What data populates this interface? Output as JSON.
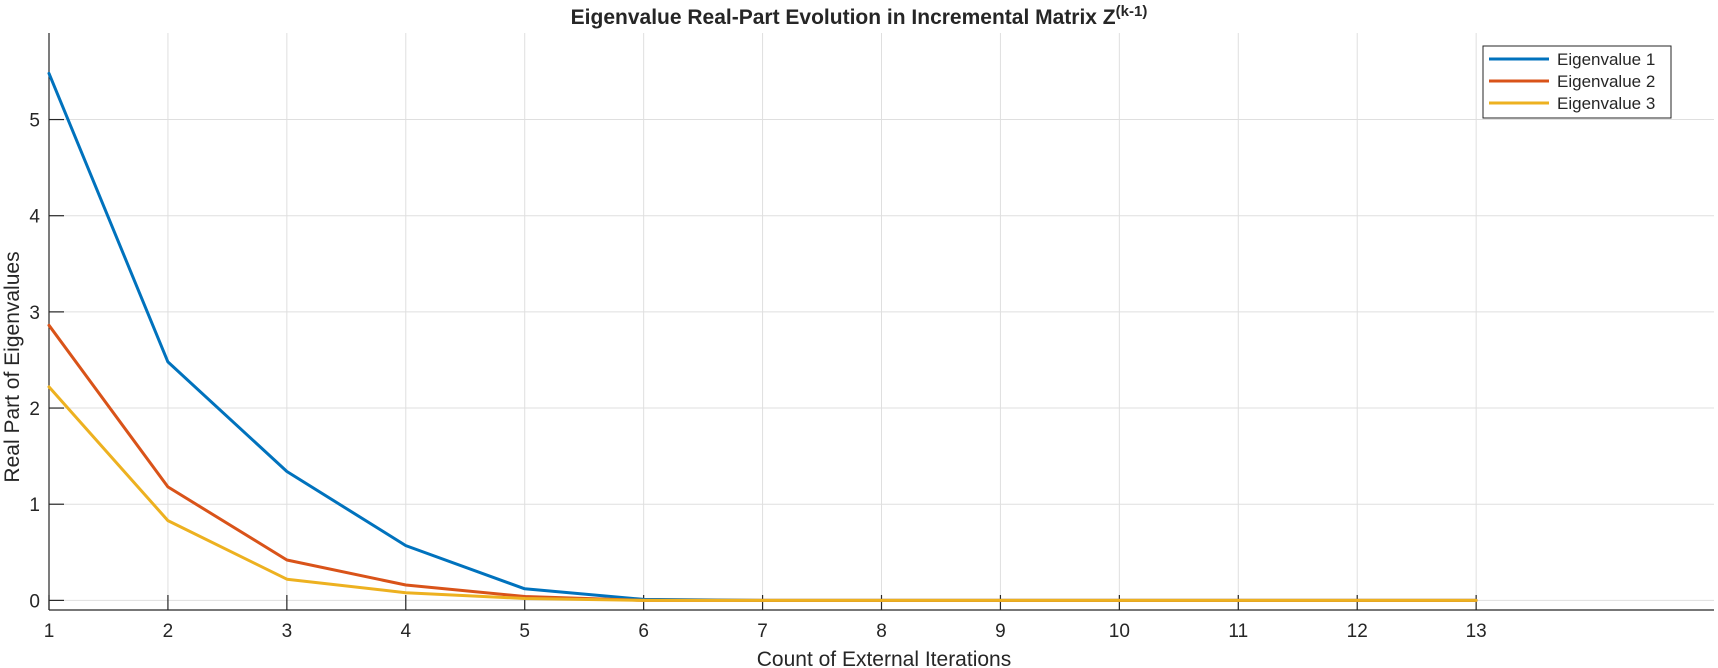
{
  "chart_data": {
    "type": "line",
    "title": "Eigenvalue  Real-Part  Evolution  in  Incremental  Matrix  Z",
    "title_superscript": "(k-1)",
    "xlabel": "Count of External Iterations",
    "ylabel": "Real Part of Eigenvalues",
    "xlim": [
      1,
      15
    ],
    "ylim": [
      -0.1,
      5.9
    ],
    "xticks": [
      1,
      2,
      3,
      4,
      5,
      6,
      7,
      8,
      9,
      10,
      11,
      12,
      13
    ],
    "yticks": [
      0,
      1,
      2,
      3,
      4,
      5
    ],
    "grid": true,
    "legend_position": "top-right",
    "x": [
      1,
      2,
      3,
      4,
      5,
      6,
      7,
      8,
      9,
      10,
      11,
      12,
      13
    ],
    "series": [
      {
        "name": "Eigenvalue 1",
        "color": "#0072BD",
        "values": [
          5.48,
          2.48,
          1.34,
          0.57,
          0.12,
          0.01,
          0.0,
          0.0,
          0.0,
          0.0,
          0.0,
          0.0,
          0.0
        ]
      },
      {
        "name": "Eigenvalue 2",
        "color": "#D95319",
        "values": [
          2.86,
          1.18,
          0.42,
          0.16,
          0.04,
          0.0,
          0.0,
          0.0,
          0.0,
          0.0,
          0.0,
          0.0,
          0.0
        ]
      },
      {
        "name": "Eigenvalue 3",
        "color": "#EDB120",
        "values": [
          2.22,
          0.83,
          0.22,
          0.08,
          0.02,
          0.0,
          0.0,
          0.0,
          0.0,
          0.0,
          0.0,
          0.0,
          0.0
        ]
      }
    ]
  }
}
